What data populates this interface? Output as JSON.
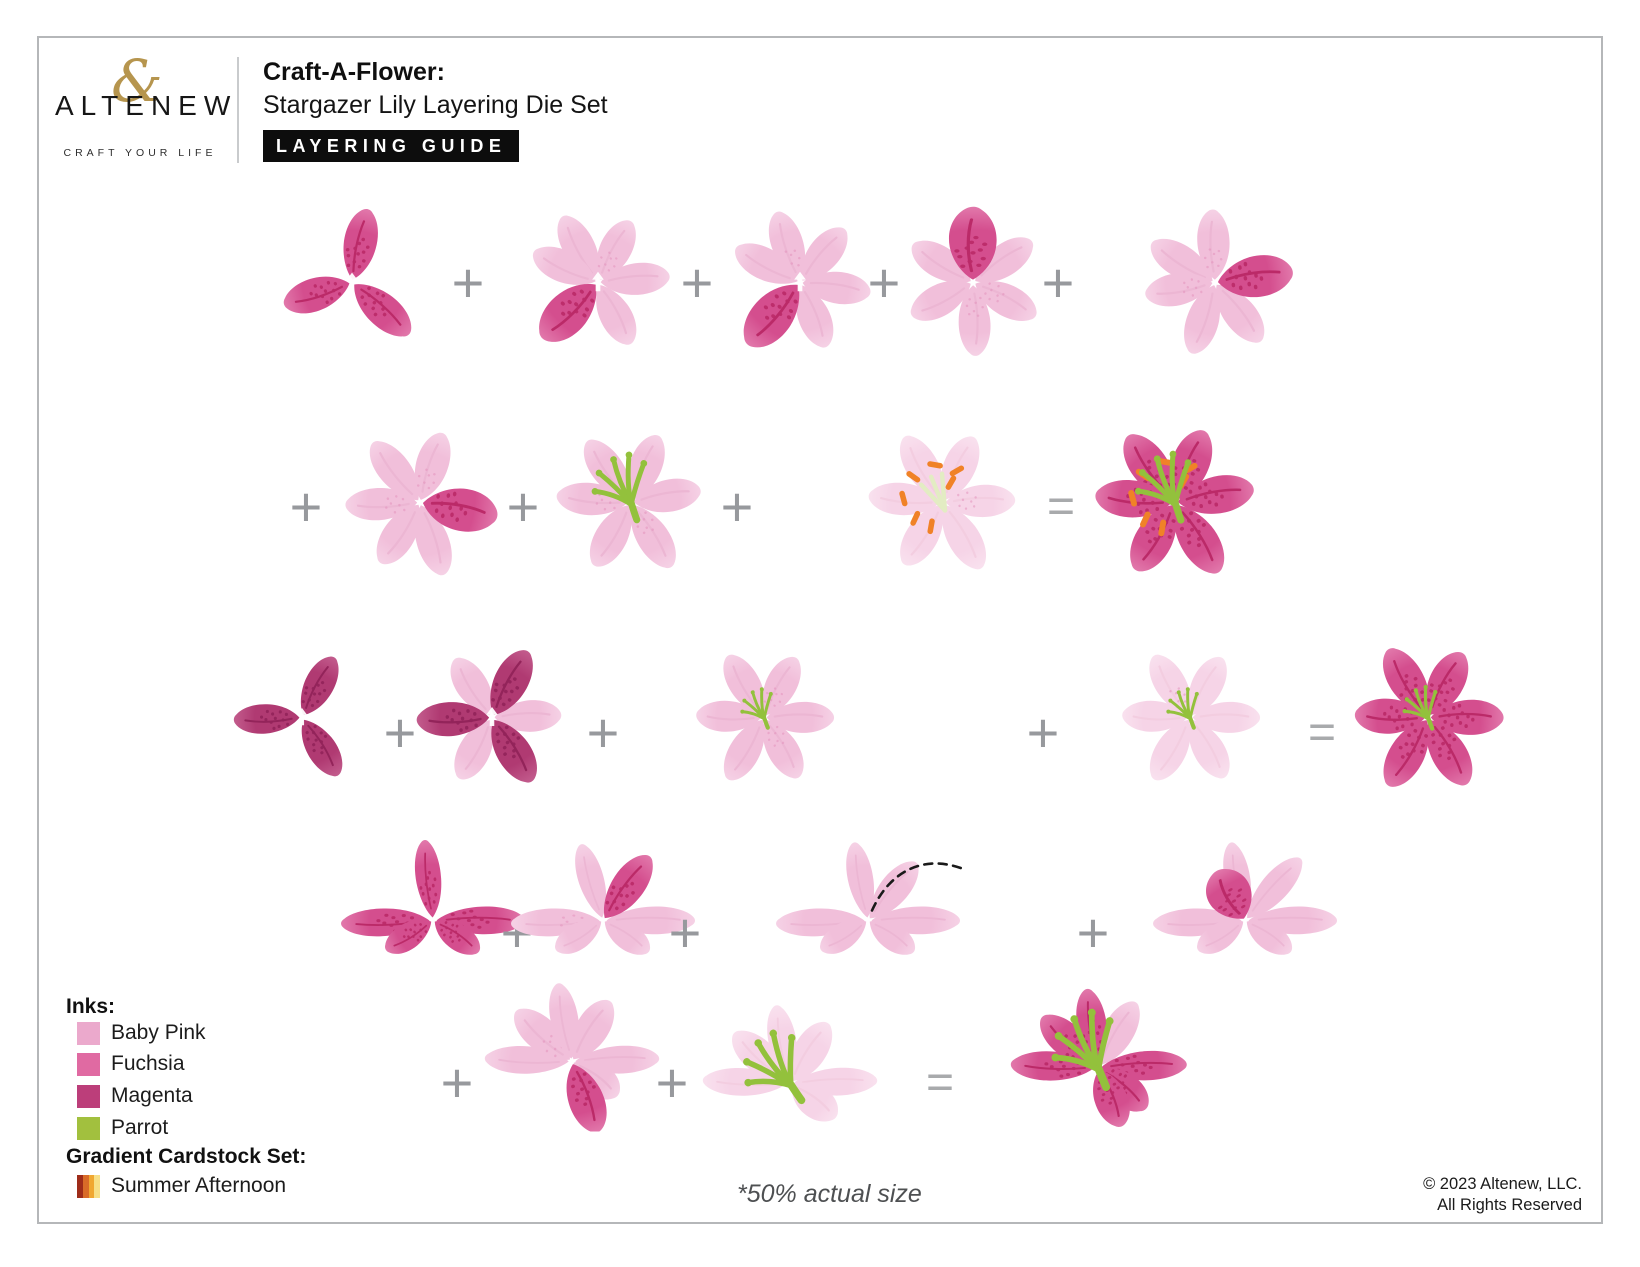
{
  "header": {
    "brand": "ALTENEW",
    "brand_ampersand": "&",
    "brand_gold": "#b6954e",
    "tagline": "CRAFT YOUR LIFE",
    "product_line": "Craft-A-Flower:",
    "product_name": "Stargazer Lily Layering Die Set",
    "badge": "LAYERING GUIDE",
    "badge_bg": "#0d0d0d"
  },
  "legend": {
    "inks_title": "Inks:",
    "inks": [
      {
        "name": "Baby Pink",
        "color": "#eba9cc"
      },
      {
        "name": "Fuchsia",
        "color": "#e06aa2"
      },
      {
        "name": "Magenta",
        "color": "#bc3e7a"
      },
      {
        "name": "Parrot",
        "color": "#a2c03e"
      }
    ],
    "cardstock_title": "Gradient Cardstock Set:",
    "cardstock_name": "Summer Afternoon",
    "cardstock_colors": [
      "#9e2c1a",
      "#d96b28",
      "#f0a731",
      "#f7df87"
    ]
  },
  "footer": {
    "scale_note": "*50% actual size",
    "copyright1": "© 2023 Altenew, LLC.",
    "copyright2": "All Rights Reserved"
  },
  "operators": {
    "plus": "+",
    "equals": "="
  },
  "artwork": {
    "petal_light": [
      "#f1bfda",
      "#fbe9f4"
    ],
    "petal_lighter": [
      "#f6d4e7",
      "#fdf2f8"
    ],
    "petal_fuchsia": [
      "#d44e8e",
      "#f3aed0"
    ],
    "petal_magenta": [
      "#b03a72",
      "#da87af"
    ],
    "vein_light": "#ecb6d3",
    "vein_lighter": "#f3cde0",
    "vein_fuchsia": "#bb2a68",
    "vein_magenta": "#93245a",
    "dots_light": "#e394bd",
    "stamen_green": "#93c13c",
    "anther_orange": "#f08227",
    "pistil_pale": "#e3ecc3",
    "fold_dash": "#1a1a1a",
    "operator_gray": "#97999d",
    "equals_gray": "#a8aaac"
  },
  "rows": [
    {
      "name": "front-petal-layers-1",
      "items": [
        {
          "type": "flower",
          "icon": "lily-outer-petals-fuchsia"
        },
        {
          "type": "op",
          "symbol": "+"
        },
        {
          "type": "flower",
          "icon": "lily-petals-baby-pink-fuchsia-accent-1"
        },
        {
          "type": "op",
          "symbol": "+"
        },
        {
          "type": "flower",
          "icon": "lily-petals-baby-pink-fuchsia-accent-2"
        },
        {
          "type": "op",
          "symbol": "+"
        },
        {
          "type": "flower",
          "icon": "lily-petals-baby-pink-fuchsia-bud"
        },
        {
          "type": "op",
          "symbol": "+"
        },
        {
          "type": "flower",
          "icon": "lily-petals-baby-pink-fuchsia-accent-3"
        }
      ]
    },
    {
      "name": "front-petal-layers-2",
      "items": [
        {
          "type": "op",
          "symbol": "+"
        },
        {
          "type": "flower",
          "icon": "lily-petals-baby-pink-fuchsia-accent-4"
        },
        {
          "type": "op",
          "symbol": "+"
        },
        {
          "type": "flower",
          "icon": "lily-baby-pink-stamens"
        },
        {
          "type": "op",
          "symbol": "+"
        },
        {
          "type": "flower",
          "icon": "lily-pale-pink-anthers"
        },
        {
          "type": "op",
          "symbol": "="
        },
        {
          "type": "flower",
          "icon": "lily-front-assembled"
        }
      ]
    },
    {
      "name": "flat-layers",
      "items": [
        {
          "type": "flower",
          "icon": "lily-inner-petals-magenta"
        },
        {
          "type": "op",
          "symbol": "+"
        },
        {
          "type": "flower",
          "icon": "lily-magenta-on-baby-pink"
        },
        {
          "type": "op",
          "symbol": "+"
        },
        {
          "type": "flower",
          "icon": "lily-baby-pink-pistil"
        },
        {
          "type": "op",
          "symbol": "+"
        },
        {
          "type": "flower",
          "icon": "lily-pale-pink-pistil"
        },
        {
          "type": "op",
          "symbol": "="
        },
        {
          "type": "flower",
          "icon": "lily-flat-assembled"
        }
      ]
    },
    {
      "name": "side-layers-1",
      "items": [
        {
          "type": "flower",
          "icon": "lily-side-petals-fuchsia"
        },
        {
          "type": "op",
          "symbol": "+"
        },
        {
          "type": "flower",
          "icon": "lily-side-baby-pink-fuchsia-petal"
        },
        {
          "type": "op",
          "symbol": "+"
        },
        {
          "type": "flower",
          "icon": "lily-side-baby-pink-fold-line"
        },
        {
          "type": "op",
          "symbol": "+"
        },
        {
          "type": "flower",
          "icon": "lily-side-baby-pink-fuchsia-fold"
        }
      ]
    },
    {
      "name": "side-layers-2",
      "items": [
        {
          "type": "op",
          "symbol": "+"
        },
        {
          "type": "flower",
          "icon": "lily-side-baby-pink-fuchsia-droop"
        },
        {
          "type": "op",
          "symbol": "+"
        },
        {
          "type": "flower",
          "icon": "lily-side-baby-pink-stamens"
        },
        {
          "type": "op",
          "symbol": "="
        },
        {
          "type": "flower",
          "icon": "lily-side-assembled"
        }
      ]
    }
  ]
}
